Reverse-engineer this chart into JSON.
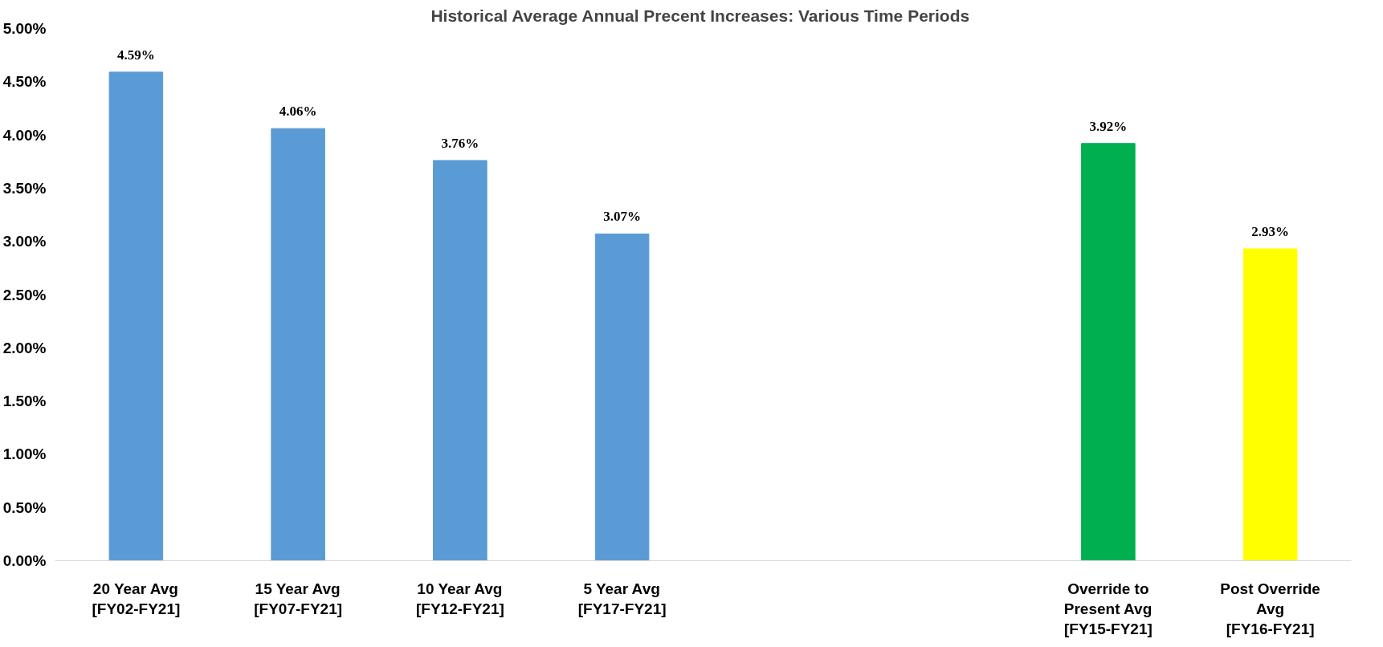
{
  "chart_data": {
    "type": "bar",
    "title": "Historical Average Annual  Precent Increases: Various Time Periods",
    "categories": [
      "20 Year Avg\n[FY02-FY21]",
      "15 Year Avg\n[FY07-FY21]",
      "10 Year Avg\n[FY12-FY21]",
      "5 Year Avg\n[FY17-FY21]",
      null,
      null,
      "Override to\nPresent Avg\n[FY15-FY21]",
      "Post Override\nAvg\n[FY16-FY21]"
    ],
    "values": [
      4.59,
      4.06,
      3.76,
      3.07,
      null,
      null,
      3.92,
      2.93
    ],
    "colors": [
      "#5b9bd5",
      "#5b9bd5",
      "#5b9bd5",
      "#5b9bd5",
      null,
      null,
      "#00b050",
      "#ffff00"
    ],
    "value_labels": [
      "4.59%",
      "4.06%",
      "3.76%",
      "3.07%",
      null,
      null,
      "3.92%",
      "2.93%"
    ],
    "ylim": [
      0,
      5
    ],
    "yticks": [
      {
        "value": 0,
        "label": "0.00%"
      },
      {
        "value": 0.5,
        "label": "0.50%"
      },
      {
        "value": 1,
        "label": "1.00%"
      },
      {
        "value": 1.5,
        "label": "1.50%"
      },
      {
        "value": 2,
        "label": "2.00%"
      },
      {
        "value": 2.5,
        "label": "2.50%"
      },
      {
        "value": 3,
        "label": "3.00%"
      },
      {
        "value": 3.5,
        "label": "3.50%"
      },
      {
        "value": 4,
        "label": "4.00%"
      },
      {
        "value": 4.5,
        "label": "4.50%"
      },
      {
        "value": 5,
        "label": "5.00%"
      }
    ],
    "grid": false
  }
}
